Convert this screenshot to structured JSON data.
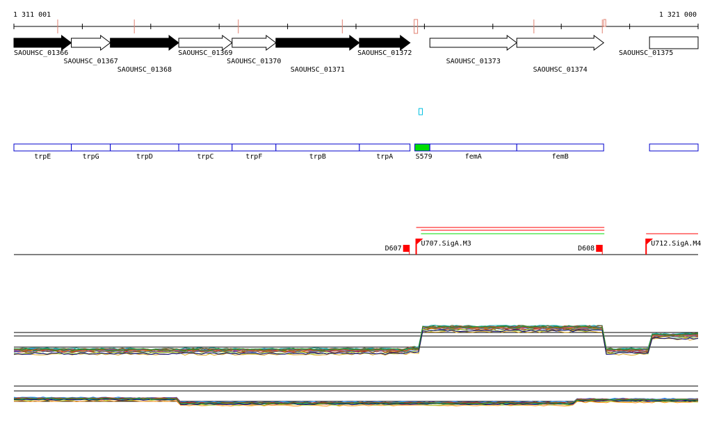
{
  "ruler": {
    "start_label": "1 311 001",
    "end_label": "1 321 000",
    "start": 1311001,
    "end": 1321000
  },
  "orfs": [
    {
      "label": "SAOUHSC_01366",
      "start": 1311001,
      "end": 1311840,
      "strand": "+",
      "filled": true
    },
    {
      "label": "SAOUHSC_01367",
      "start": 1311840,
      "end": 1312410,
      "strand": "+",
      "filled": false
    },
    {
      "label": "SAOUHSC_01368",
      "start": 1312410,
      "end": 1313410,
      "strand": "+",
      "filled": true
    },
    {
      "label": "SAOUHSC_01369",
      "start": 1313410,
      "end": 1314190,
      "strand": "+",
      "filled": false
    },
    {
      "label": "SAOUHSC_01370",
      "start": 1314190,
      "end": 1314830,
      "strand": "+",
      "filled": false
    },
    {
      "label": "SAOUHSC_01371",
      "start": 1314830,
      "end": 1316050,
      "strand": "+",
      "filled": true
    },
    {
      "label": "SAOUHSC_01372",
      "start": 1316050,
      "end": 1316790,
      "strand": "+",
      "filled": true
    },
    {
      "label": "SAOUHSC_01373",
      "start": 1317080,
      "end": 1318350,
      "strand": "+",
      "filled": false
    },
    {
      "label": "SAOUHSC_01374",
      "start": 1318350,
      "end": 1319620,
      "strand": "+",
      "filled": false
    },
    {
      "label": "SAOUHSC_01375",
      "start": 1320290,
      "end": 1321000,
      "strand": "+",
      "filled": false
    }
  ],
  "genes": [
    {
      "label": "trpE",
      "start": 1311001,
      "end": 1311840
    },
    {
      "label": "trpG",
      "start": 1311840,
      "end": 1312410
    },
    {
      "label": "trpD",
      "start": 1312410,
      "end": 1313410
    },
    {
      "label": "trpC",
      "start": 1313410,
      "end": 1314190
    },
    {
      "label": "trpF",
      "start": 1314190,
      "end": 1314830
    },
    {
      "label": "trpB",
      "start": 1314830,
      "end": 1316050
    },
    {
      "label": "trpA",
      "start": 1316050,
      "end": 1316790
    },
    {
      "label": "S579",
      "start": 1316860,
      "end": 1317080,
      "green": true
    },
    {
      "label": "femA",
      "start": 1317080,
      "end": 1318350
    },
    {
      "label": "femB",
      "start": 1318350,
      "end": 1319620
    },
    {
      "label": "",
      "start": 1320290,
      "end": 1321000
    }
  ],
  "cyan_feature": {
    "start": 1316920,
    "end": 1316970
  },
  "features": [
    {
      "label": "D607",
      "pos": 1316780,
      "kind": "block"
    },
    {
      "label": "U707.SigA.M3",
      "pos": 1316880,
      "kind": "flag"
    },
    {
      "label": "D608",
      "pos": 1319600,
      "kind": "block"
    },
    {
      "label": "U712.SigA.M4",
      "pos": 1320240,
      "kind": "flag"
    }
  ],
  "red_spans": [
    {
      "start": 1316880,
      "end": 1319630
    },
    {
      "start": 1316950,
      "end": 1319630
    },
    {
      "start": 1320240,
      "end": 1321000
    }
  ],
  "green_spans": [
    {
      "start": 1316950,
      "end": 1319630
    }
  ],
  "track1": {
    "segments": [
      {
        "start": 1311001,
        "end": 1316790,
        "level": 0.1
      },
      {
        "start": 1316790,
        "end": 1316960,
        "level": 0.15
      },
      {
        "start": 1316960,
        "end": 1319630,
        "level": 0.78
      },
      {
        "start": 1319630,
        "end": 1320290,
        "level": 0.1
      },
      {
        "start": 1320290,
        "end": 1321000,
        "level": 0.55
      }
    ]
  },
  "track2": {
    "segments": [
      {
        "start": 1311001,
        "end": 1313410,
        "level": 0.55
      },
      {
        "start": 1313410,
        "end": 1319200,
        "level": 0.35
      },
      {
        "start": 1319200,
        "end": 1321000,
        "level": 0.5
      }
    ]
  },
  "colors": {
    "orf_fill": "#000000",
    "gene_box": "#0000cc",
    "green": "#00dd00",
    "cyan": "#00c0e0",
    "red": "#ff0000",
    "tick_mark": "#e08070",
    "line_palette": [
      "#c0392b",
      "#2e8b57",
      "#8b4513",
      "#1e90ff",
      "#daa520",
      "#8b008b",
      "#ff8c00",
      "#556b2f",
      "#4682b4",
      "#b22222",
      "#9acd32",
      "#6a5acd",
      "#808000",
      "#cd5c5c",
      "#20b2aa",
      "#000080",
      "#a0522d",
      "#228b22"
    ]
  }
}
